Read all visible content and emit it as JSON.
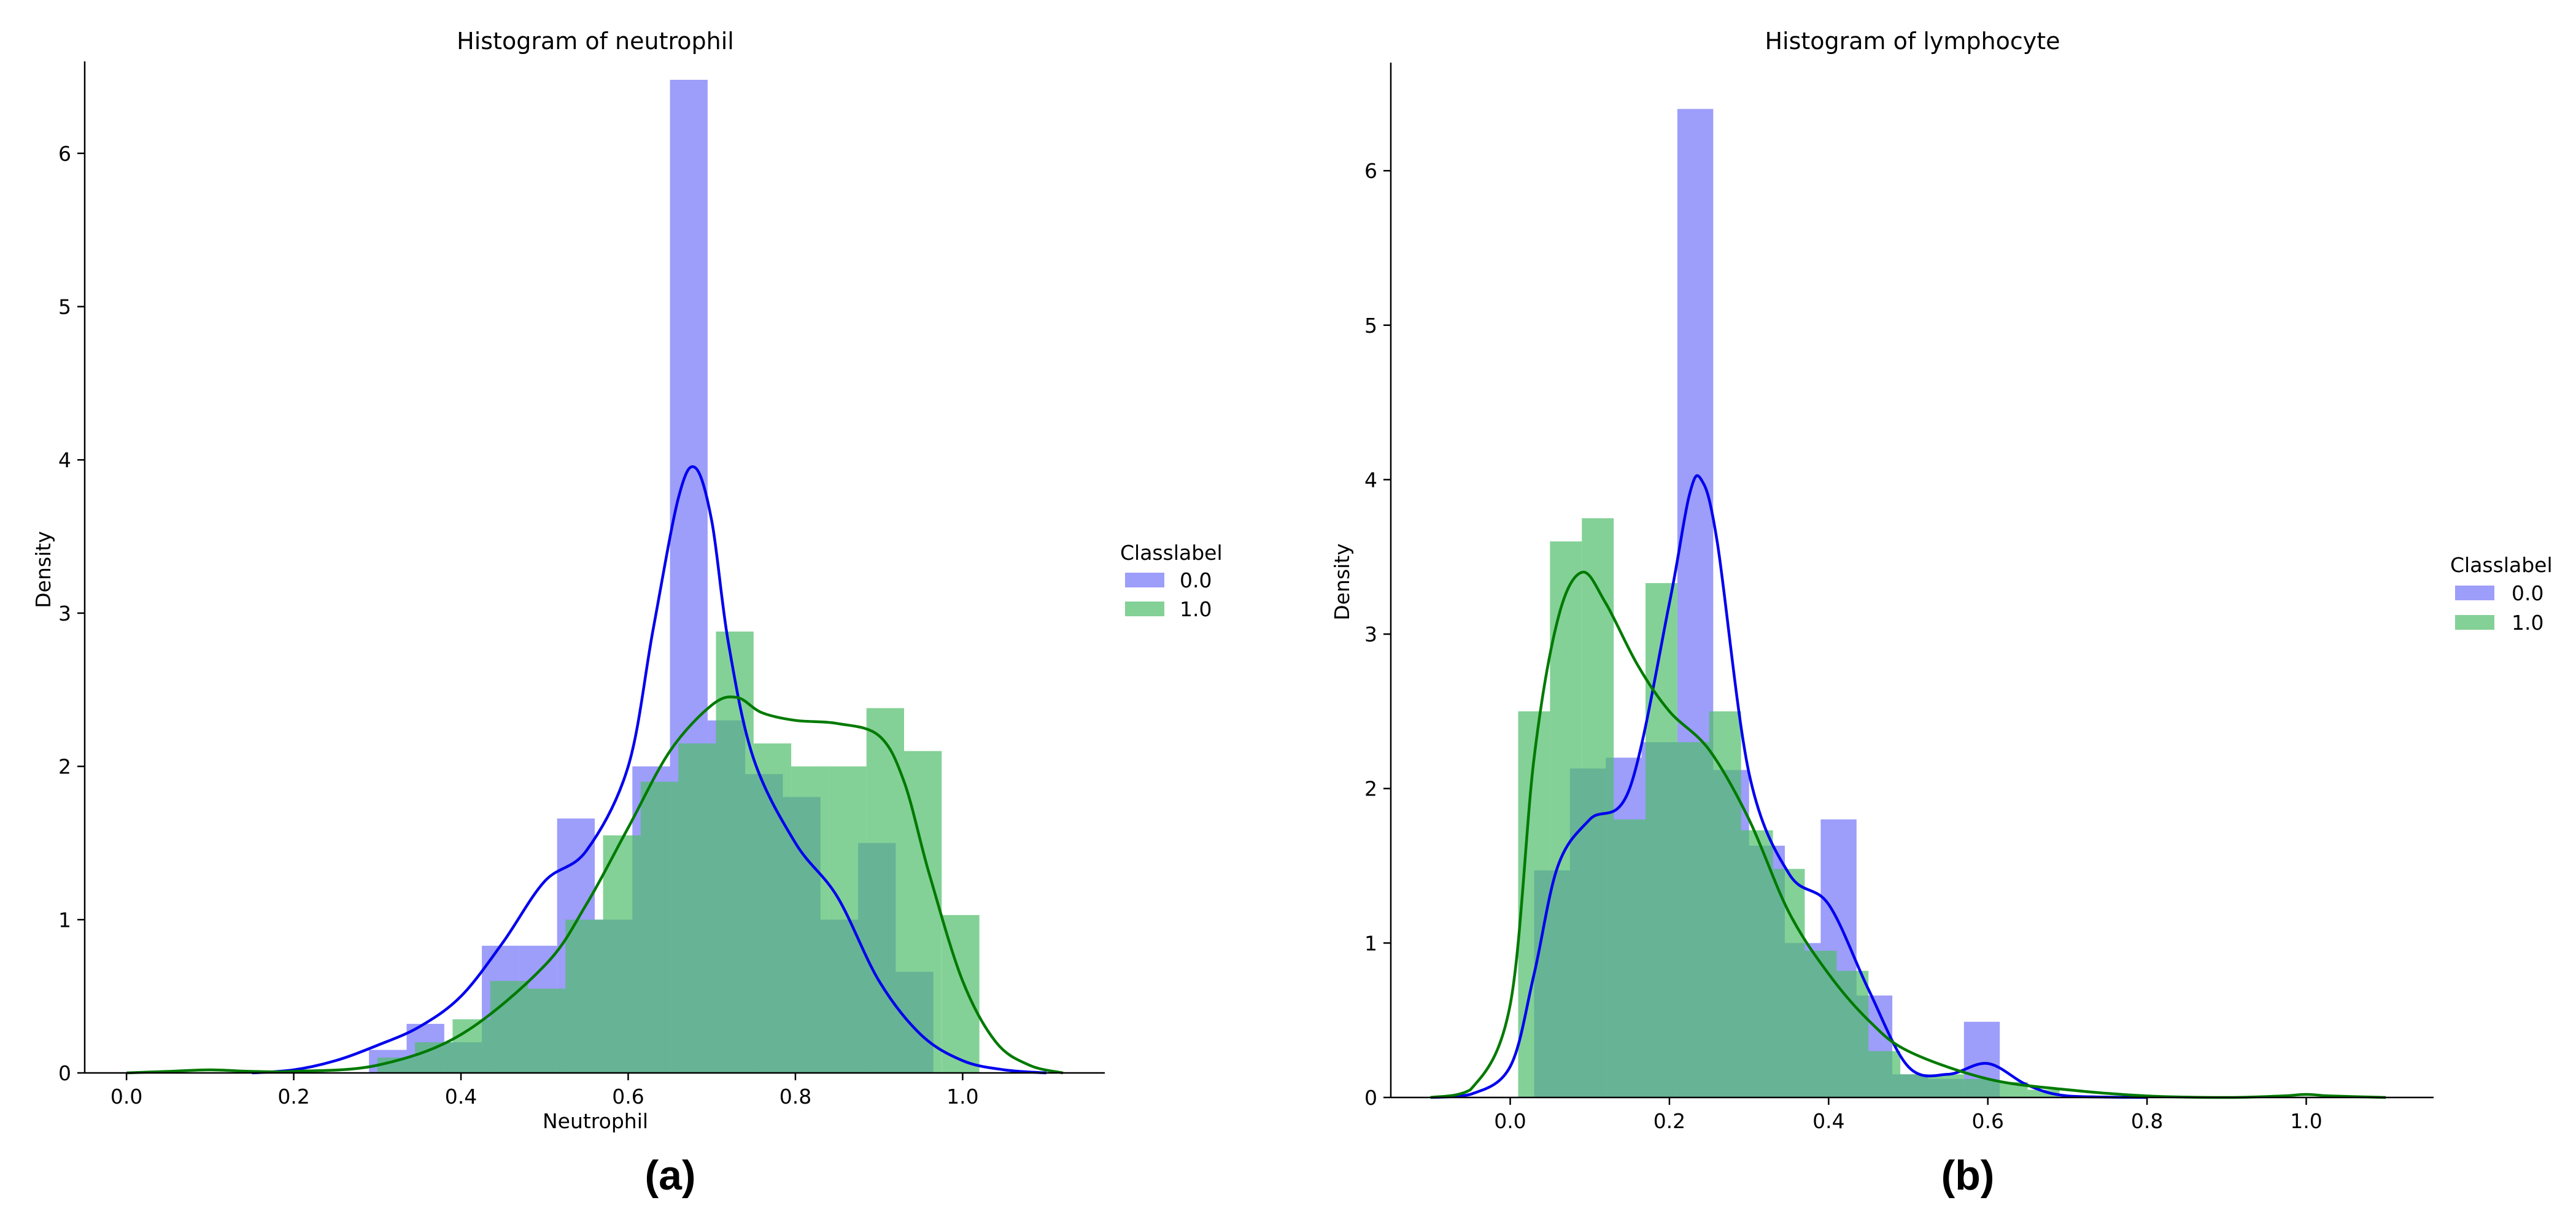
{
  "panel_labels": [
    "(a)",
    "(b)"
  ],
  "colors": {
    "class0_bar": "#6e6ef7",
    "class1_bar": "#4fbd6a",
    "class0_line": "#0000ee",
    "class1_line": "#007a00"
  },
  "chart_data": [
    {
      "type": "bar",
      "title": "Histogram of neutrophil",
      "xlabel": "Neutrophil",
      "ylabel": "Density",
      "xlim": [
        -0.05,
        1.17
      ],
      "ylim": [
        0,
        6.6
      ],
      "xticks": [
        0.0,
        0.2,
        0.4,
        0.6,
        0.8,
        1.0
      ],
      "xtick_labels": [
        "0.0",
        "0.2",
        "0.4",
        "0.6",
        "0.8",
        "1.0"
      ],
      "yticks": [
        0,
        1,
        2,
        3,
        4,
        5,
        6
      ],
      "ytick_labels": [
        "0",
        "1",
        "2",
        "3",
        "4",
        "5",
        "6"
      ],
      "legend": {
        "title": "Classlabel",
        "entries": [
          "0.0",
          "1.0"
        ],
        "placement": "center-right outside"
      },
      "series": [
        {
          "name": "0.0",
          "bin_edges": [
            0.29,
            0.335,
            0.38,
            0.425,
            0.47,
            0.515,
            0.56,
            0.605,
            0.65,
            0.695,
            0.74,
            0.785,
            0.83,
            0.875,
            0.92,
            0.965
          ],
          "values": [
            0.15,
            0.32,
            0.2,
            0.83,
            0.83,
            1.66,
            1.0,
            2.0,
            6.48,
            2.3,
            1.95,
            1.8,
            1.0,
            1.5,
            0.66
          ],
          "kde_x": [
            0.15,
            0.2,
            0.25,
            0.3,
            0.35,
            0.4,
            0.45,
            0.5,
            0.55,
            0.6,
            0.63,
            0.66,
            0.68,
            0.7,
            0.72,
            0.75,
            0.8,
            0.85,
            0.9,
            0.95,
            1.0,
            1.05,
            1.1
          ],
          "kde_y": [
            0.0,
            0.02,
            0.08,
            0.18,
            0.3,
            0.5,
            0.85,
            1.25,
            1.45,
            2.0,
            2.9,
            3.75,
            3.95,
            3.6,
            2.8,
            2.05,
            1.5,
            1.15,
            0.6,
            0.25,
            0.08,
            0.02,
            0.0
          ]
        },
        {
          "name": "1.0",
          "bin_edges": [
            0.3,
            0.345,
            0.39,
            0.435,
            0.48,
            0.525,
            0.57,
            0.615,
            0.66,
            0.705,
            0.75,
            0.795,
            0.84,
            0.885,
            0.93,
            0.975,
            1.02
          ],
          "values": [
            0.1,
            0.2,
            0.35,
            0.6,
            0.55,
            1.0,
            1.55,
            1.9,
            2.15,
            2.88,
            2.15,
            2.0,
            2.0,
            2.38,
            2.1,
            1.03
          ],
          "kde_x": [
            0.0,
            0.05,
            0.1,
            0.15,
            0.2,
            0.3,
            0.4,
            0.5,
            0.55,
            0.6,
            0.65,
            0.7,
            0.73,
            0.76,
            0.8,
            0.85,
            0.9,
            0.93,
            0.96,
            1.0,
            1.04,
            1.08,
            1.12
          ],
          "kde_y": [
            0.0,
            0.01,
            0.02,
            0.01,
            0.01,
            0.05,
            0.25,
            0.7,
            1.1,
            1.6,
            2.1,
            2.4,
            2.45,
            2.35,
            2.3,
            2.28,
            2.2,
            1.9,
            1.3,
            0.6,
            0.2,
            0.05,
            0.0
          ]
        }
      ]
    },
    {
      "type": "bar",
      "title": "Histogram of lymphocyte",
      "xlabel": "",
      "ylabel": "Density",
      "xlim": [
        -0.15,
        1.16
      ],
      "ylim": [
        0,
        6.7
      ],
      "xticks": [
        0.0,
        0.2,
        0.4,
        0.6,
        0.8,
        1.0
      ],
      "xtick_labels": [
        "0.0",
        "0.2",
        "0.4",
        "0.6",
        "0.8",
        "1.0"
      ],
      "yticks": [
        0,
        1,
        2,
        3,
        4,
        5,
        6
      ],
      "ytick_labels": [
        "0",
        "1",
        "2",
        "3",
        "4",
        "5",
        "6"
      ],
      "legend": {
        "title": "Classlabel",
        "entries": [
          "0.0",
          "1.0"
        ],
        "placement": "center-right outside"
      },
      "series": [
        {
          "name": "0.0",
          "bin_edges": [
            0.03,
            0.075,
            0.12,
            0.165,
            0.21,
            0.255,
            0.3,
            0.345,
            0.39,
            0.435,
            0.48,
            0.525,
            0.57,
            0.615
          ],
          "values": [
            1.47,
            2.13,
            2.2,
            2.3,
            6.4,
            2.12,
            1.63,
            1.0,
            1.8,
            0.66,
            0.15,
            0.12,
            0.49
          ],
          "kde_x": [
            -0.1,
            -0.05,
            0.0,
            0.03,
            0.06,
            0.1,
            0.15,
            0.2,
            0.225,
            0.24,
            0.26,
            0.3,
            0.35,
            0.4,
            0.45,
            0.5,
            0.55,
            0.6,
            0.65,
            0.7,
            0.8
          ],
          "kde_y": [
            0.0,
            0.02,
            0.2,
            0.8,
            1.5,
            1.8,
            2.0,
            3.2,
            3.9,
            4.0,
            3.6,
            2.1,
            1.45,
            1.25,
            0.7,
            0.2,
            0.15,
            0.22,
            0.08,
            0.01,
            0.0
          ]
        },
        {
          "name": "1.0",
          "bin_edges": [
            0.01,
            0.05,
            0.09,
            0.13,
            0.17,
            0.21,
            0.25,
            0.29,
            0.33,
            0.37,
            0.41,
            0.45,
            0.49,
            0.53,
            0.57,
            0.61,
            0.65,
            0.69
          ],
          "values": [
            2.5,
            3.6,
            3.75,
            1.8,
            3.33,
            2.3,
            2.5,
            1.73,
            1.48,
            0.95,
            0.82,
            0.3,
            0.15,
            0.15,
            0.12,
            0.1,
            0.05
          ],
          "kde_x": [
            -0.1,
            -0.05,
            0.0,
            0.03,
            0.06,
            0.09,
            0.12,
            0.16,
            0.2,
            0.25,
            0.3,
            0.35,
            0.4,
            0.45,
            0.5,
            0.6,
            0.7,
            0.8,
            0.9,
            0.97,
            1.0,
            1.03,
            1.1
          ],
          "kde_y": [
            0.0,
            0.05,
            0.6,
            2.2,
            3.1,
            3.4,
            3.2,
            2.8,
            2.5,
            2.25,
            1.8,
            1.2,
            0.8,
            0.5,
            0.3,
            0.12,
            0.05,
            0.01,
            0.0,
            0.01,
            0.02,
            0.01,
            0.0
          ]
        }
      ]
    }
  ]
}
